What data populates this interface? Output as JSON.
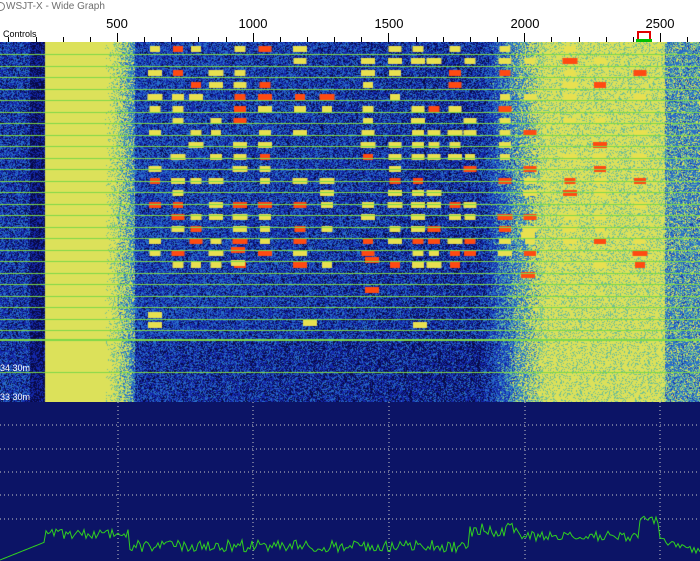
{
  "window": {
    "title": "WSJT-X - Wide Graph"
  },
  "controls": {
    "label": "Controls"
  },
  "freq_scale": {
    "labels": [
      "500",
      "1000",
      "1500",
      "2000",
      "2500"
    ],
    "values": [
      500,
      1000,
      1500,
      2000,
      2500
    ]
  },
  "waterfall": {
    "band_labels": [
      {
        "id": "34",
        "band": "30m",
        "text": "34   30m"
      },
      {
        "id": "33",
        "band": "30m",
        "text": "33   30m"
      }
    ]
  },
  "colors": {
    "background_blue": "#1a2a9c",
    "signal_yellow": "#e0e060",
    "signal_red": "#ff4010",
    "separator_green": "#7dd848",
    "spectrum_trace": "#30d020",
    "rx_marker": "#e00000",
    "tx_marker": "#00c000"
  }
}
